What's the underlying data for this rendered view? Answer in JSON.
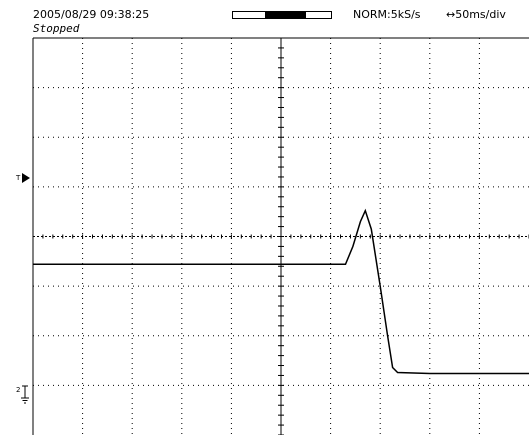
{
  "header": {
    "timestamp": "2005/08/29  09:38:25",
    "status": "Stopped",
    "acquisition_mode": "NORM:5kS/s",
    "timebase": "↔50ms/div"
  },
  "memory_bar": {
    "window_start": 0.33,
    "window_end": 0.75
  },
  "markers": {
    "trigger_level": "T",
    "channel_2": "2"
  },
  "display": {
    "grid_divisions_x": 10,
    "grid_divisions_y": 8,
    "trace_color": "#000000",
    "grid_color": "#000000"
  },
  "trace": {
    "unit": "div",
    "points": [
      [
        0.0,
        -0.56
      ],
      [
        1.0,
        -0.56
      ],
      [
        2.0,
        -0.56
      ],
      [
        3.0,
        -0.56
      ],
      [
        4.0,
        -0.56
      ],
      [
        5.0,
        -0.56
      ],
      [
        6.0,
        -0.56
      ],
      [
        6.3,
        -0.56
      ],
      [
        6.45,
        -0.2
      ],
      [
        6.6,
        0.3
      ],
      [
        6.7,
        0.52
      ],
      [
        6.82,
        0.15
      ],
      [
        7.0,
        -1.0
      ],
      [
        7.15,
        -2.0
      ],
      [
        7.25,
        -2.64
      ],
      [
        7.35,
        -2.74
      ],
      [
        8.0,
        -2.76
      ],
      [
        9.0,
        -2.76
      ],
      [
        10.0,
        -2.76
      ]
    ]
  }
}
